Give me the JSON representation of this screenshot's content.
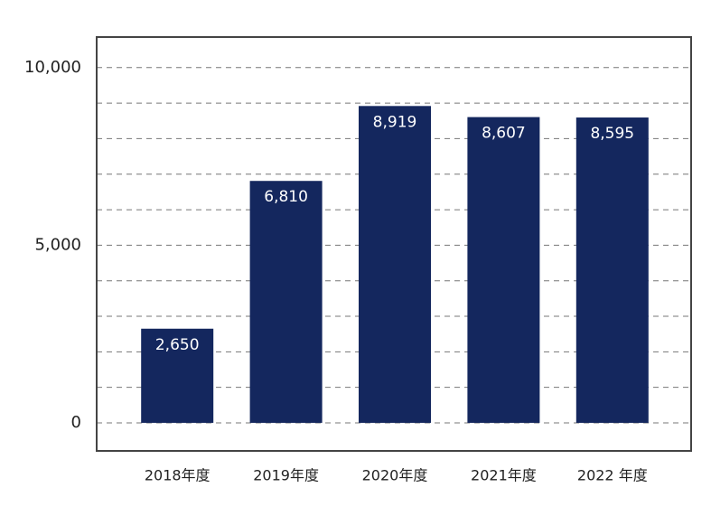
{
  "chart_data": {
    "type": "bar",
    "categories": [
      "2018年度",
      "2019年度",
      "2020年度",
      "2021年度",
      "2022 年度"
    ],
    "values": [
      2650,
      6810,
      8919,
      8607,
      8595
    ],
    "value_labels": [
      "2,650",
      "6,810",
      "8,919",
      "8,607",
      "8,595"
    ],
    "color": "#14275e",
    "ylim": [
      -790,
      10860
    ],
    "yticks": [
      0,
      {
        "value": 5000,
        "label": "5,000"
      },
      {
        "value": 10000,
        "label": "10,000"
      }
    ],
    "minor_ticks": [
      1000,
      2000,
      3000,
      4000,
      6000,
      7000,
      8000,
      9000
    ],
    "grid": true
  }
}
